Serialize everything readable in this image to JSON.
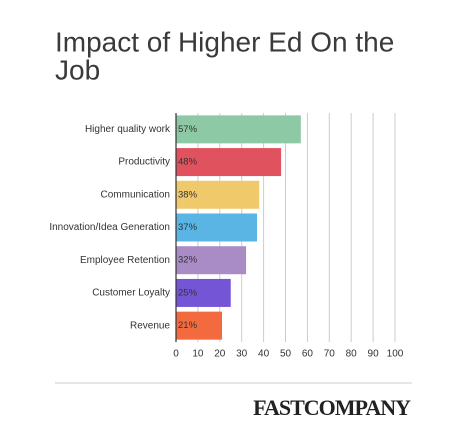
{
  "chart_data": {
    "type": "barh",
    "title_lines": [
      "Impact of Higher Ed On the",
      "Job"
    ],
    "categories": [
      "Higher quality work",
      "Productivity",
      "Communication",
      "Innovation/Idea Generation",
      "Employee Retention",
      "Customer Loyalty",
      "Revenue"
    ],
    "values": [
      57,
      48,
      38,
      37,
      32,
      25,
      21
    ],
    "value_labels": [
      "57%",
      "48%",
      "38%",
      "37%",
      "32%",
      "25%",
      "21%"
    ],
    "colors": [
      "#8cc9a4",
      "#e0525e",
      "#f0c96a",
      "#5ab4e4",
      "#a98cc6",
      "#7455d6",
      "#f26a3e"
    ],
    "xlim": [
      0,
      100
    ],
    "xticks": [
      0,
      10,
      20,
      30,
      40,
      50,
      60,
      70,
      80,
      90,
      100
    ],
    "grid": true
  },
  "footer": {
    "logo": "FASTCOMPANY"
  }
}
